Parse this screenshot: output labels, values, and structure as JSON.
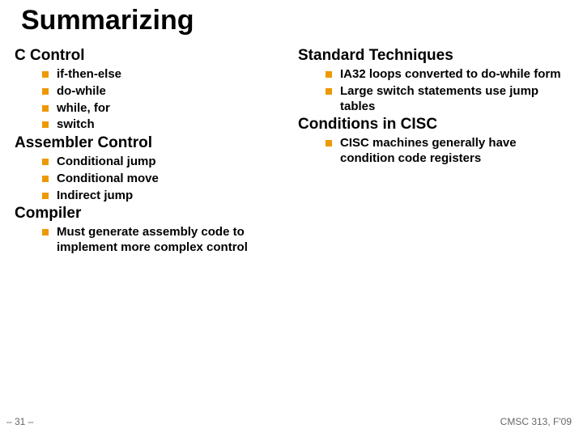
{
  "title": "Summarizing",
  "slide_number": "– 31 –",
  "course": "CMSC 313, F'09",
  "bullet_color": "#ed9900",
  "left": {
    "sections": [
      {
        "header": "C Control",
        "items": [
          "if-then-else",
          "do-while",
          "while, for",
          "switch"
        ]
      },
      {
        "header": "Assembler Control",
        "items": [
          "Conditional jump",
          "Conditional move",
          "Indirect jump"
        ]
      },
      {
        "header": "Compiler",
        "items": [
          "Must generate assembly code to implement more complex control"
        ]
      }
    ]
  },
  "right": {
    "sections": [
      {
        "header": "Standard Techniques",
        "items": [
          "IA32 loops converted to do-while form",
          "Large switch statements use jump tables"
        ]
      },
      {
        "header": "Conditions in CISC",
        "items": [
          "CISC machines generally have condition code registers"
        ]
      }
    ]
  },
  "style": {
    "title_fontsize": 34,
    "header_fontsize": 19,
    "item_fontsize": 15,
    "title_color": "#000000",
    "text_color": "#000000",
    "footer_color": "#666666",
    "background_color": "#ffffff"
  }
}
